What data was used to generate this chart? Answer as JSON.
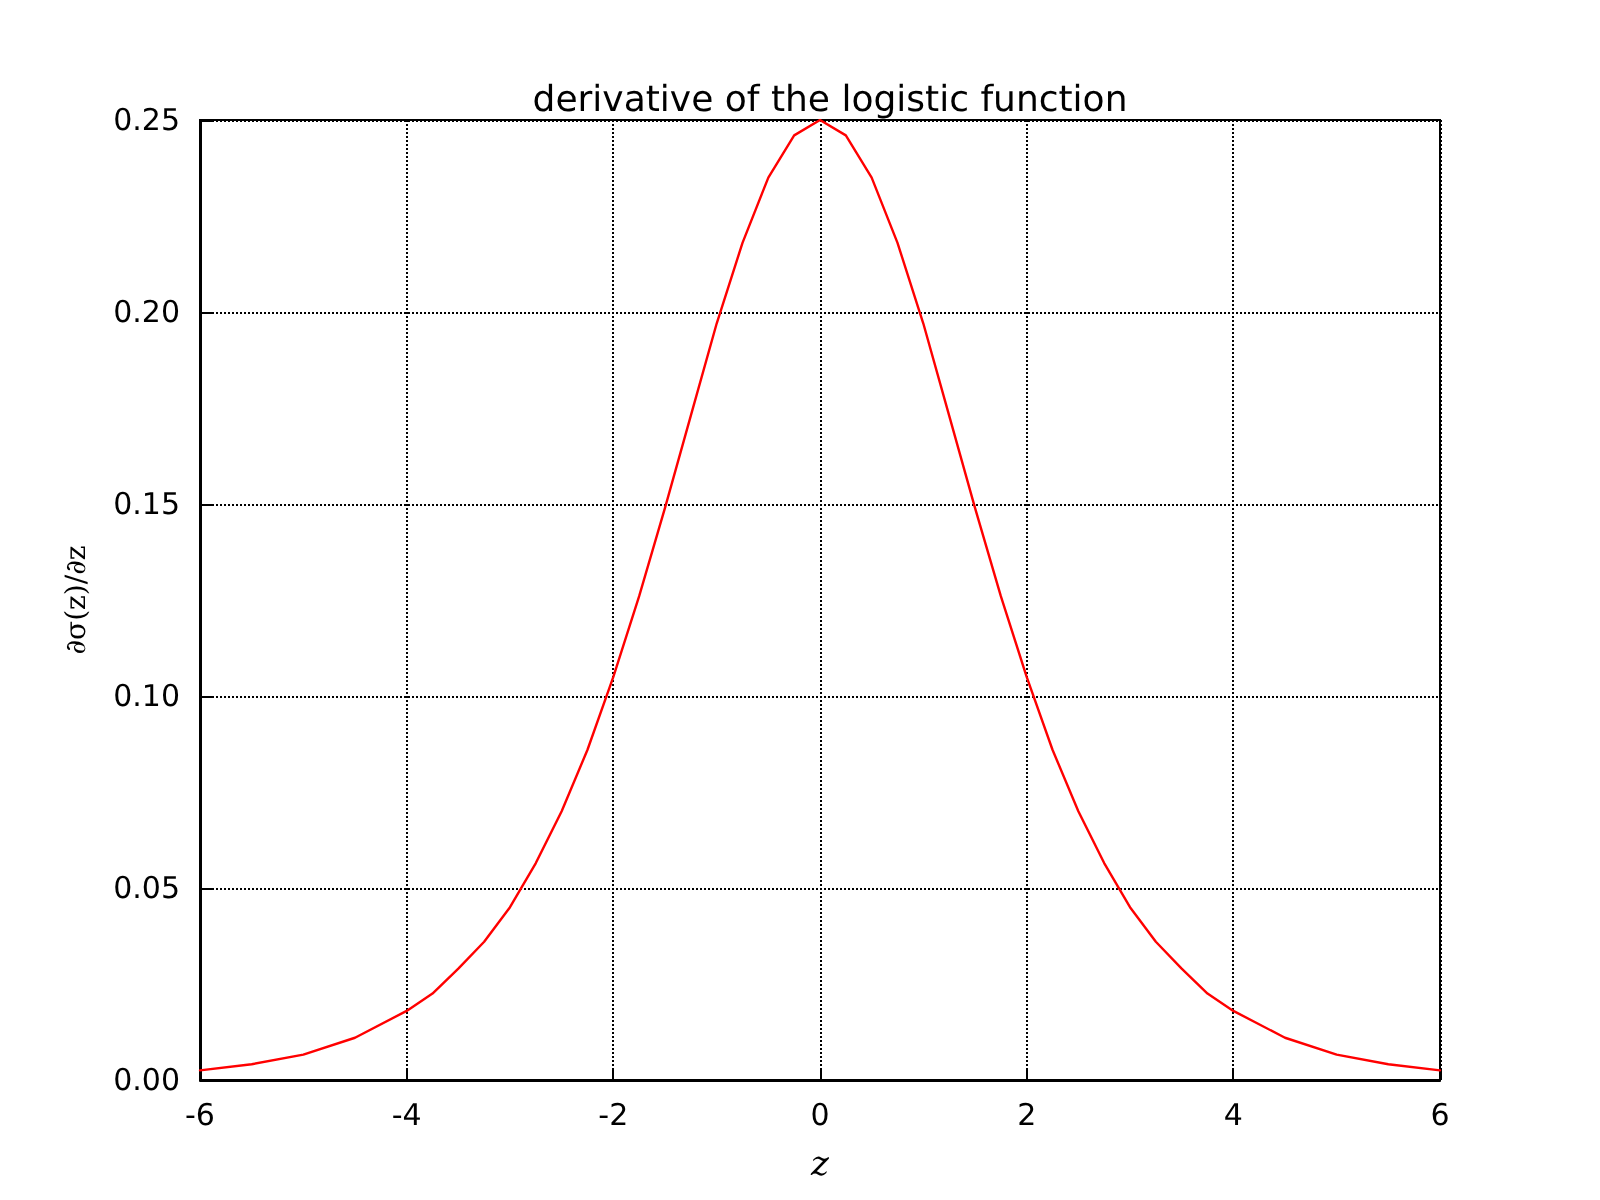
{
  "chart_data": {
    "type": "line",
    "title": "derivative of the logistic function",
    "xlabel": "z",
    "ylabel": "∂σ(z)/∂z",
    "series": [
      {
        "color": "#ff0000",
        "x": [
          -6,
          -5.5,
          -5,
          -4.5,
          -4,
          -3.75,
          -3.5,
          -3.25,
          -3,
          -2.75,
          -2.5,
          -2.25,
          -2,
          -1.75,
          -1.5,
          -1.25,
          -1,
          -0.75,
          -0.5,
          -0.25,
          0,
          0.25,
          0.5,
          0.75,
          1,
          1.25,
          1.5,
          1.75,
          2,
          2.25,
          2.5,
          2.75,
          3,
          3.25,
          3.5,
          3.75,
          4,
          4.5,
          5,
          5.5,
          6
        ],
        "values": [
          0.0025,
          0.0041,
          0.0066,
          0.011,
          0.018,
          0.0225,
          0.029,
          0.036,
          0.045,
          0.0565,
          0.07,
          0.086,
          0.105,
          0.126,
          0.149,
          0.173,
          0.197,
          0.218,
          0.235,
          0.246,
          0.25,
          0.246,
          0.235,
          0.218,
          0.197,
          0.173,
          0.149,
          0.126,
          0.105,
          0.086,
          0.07,
          0.0565,
          0.045,
          0.036,
          0.029,
          0.0225,
          0.018,
          0.011,
          0.0066,
          0.0041,
          0.0025
        ]
      }
    ],
    "xlim": [
      -6,
      6
    ],
    "xticks": [
      -6,
      -4,
      -2,
      0,
      2,
      4,
      6
    ],
    "ylim": [
      0,
      0.25
    ],
    "yticks": [
      {
        "value": 0,
        "label": "0.00"
      },
      {
        "value": 0.05,
        "label": "0.05"
      },
      {
        "value": 0.1,
        "label": "0.10"
      },
      {
        "value": 0.15,
        "label": "0.15"
      },
      {
        "value": 0.2,
        "label": "0.20"
      },
      {
        "value": 0.25,
        "label": "0.25"
      }
    ],
    "grid": true,
    "marker": "none",
    "line_style": "solid"
  }
}
